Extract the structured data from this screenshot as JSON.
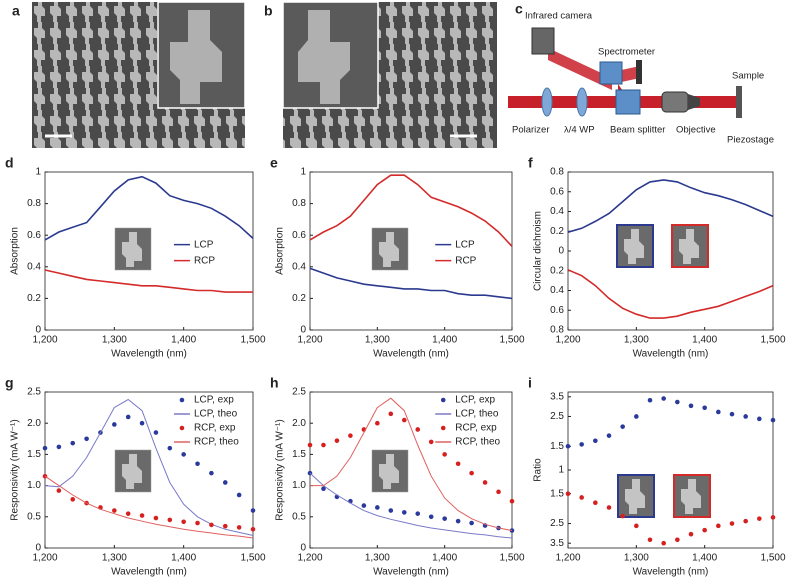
{
  "panels": {
    "a": {
      "label": "a"
    },
    "b": {
      "label": "b"
    },
    "c": {
      "label": "c",
      "labels": [
        "Infrared camera",
        "Spectrometer",
        "Sample",
        "Polarizer",
        "λ/4 WP",
        "Beam splitter",
        "Objective",
        "Piezostage"
      ]
    }
  },
  "chart_data": [
    {
      "type": "line",
      "label": "d",
      "ylabel": "Absorption",
      "xlabel": "Wavelength (nm)",
      "legend": "center-right",
      "x": [
        1200,
        1220,
        1240,
        1260,
        1280,
        1300,
        1320,
        1340,
        1360,
        1380,
        1400,
        1420,
        1440,
        1460,
        1480,
        1500
      ],
      "xlim": [
        1200,
        1500
      ],
      "xticks": [
        {
          "value": 1200,
          "label": "1,200"
        },
        {
          "value": 1300,
          "label": "1,300"
        },
        {
          "value": 1400,
          "label": "1,400"
        },
        {
          "value": 1500,
          "label": "1,500"
        }
      ],
      "ylim": [
        0,
        1
      ],
      "yticks": [
        0,
        0.2,
        0.4,
        0.6,
        0.8,
        1
      ],
      "series": [
        {
          "name": "LCP",
          "color": "#2b3a8f",
          "mode": "lines",
          "values": [
            0.57,
            0.62,
            0.65,
            0.68,
            0.78,
            0.88,
            0.95,
            0.97,
            0.93,
            0.85,
            0.82,
            0.8,
            0.77,
            0.72,
            0.66,
            0.58
          ]
        },
        {
          "name": "RCP",
          "color": "#d42a2a",
          "mode": "lines",
          "values": [
            0.38,
            0.36,
            0.34,
            0.32,
            0.31,
            0.3,
            0.29,
            0.28,
            0.28,
            0.27,
            0.26,
            0.25,
            0.25,
            0.24,
            0.24,
            0.24
          ]
        }
      ]
    },
    {
      "type": "line",
      "label": "e",
      "ylabel": "Absorption",
      "xlabel": "Wavelength (nm)",
      "legend": "center-right",
      "x": [
        1200,
        1220,
        1240,
        1260,
        1280,
        1300,
        1320,
        1340,
        1360,
        1380,
        1400,
        1420,
        1440,
        1460,
        1480,
        1500
      ],
      "xlim": [
        1200,
        1500
      ],
      "xticks": [
        {
          "value": 1200,
          "label": "1,200"
        },
        {
          "value": 1300,
          "label": "1,300"
        },
        {
          "value": 1400,
          "label": "1,400"
        },
        {
          "value": 1500,
          "label": "1,500"
        }
      ],
      "ylim": [
        0,
        1
      ],
      "yticks": [
        0,
        0.2,
        0.4,
        0.6,
        0.8,
        1
      ],
      "series": [
        {
          "name": "LCP",
          "color": "#2b3a8f",
          "mode": "lines",
          "values": [
            0.39,
            0.36,
            0.33,
            0.31,
            0.29,
            0.28,
            0.27,
            0.26,
            0.26,
            0.25,
            0.25,
            0.23,
            0.22,
            0.22,
            0.21,
            0.2
          ]
        },
        {
          "name": "RCP",
          "color": "#d42a2a",
          "mode": "lines",
          "values": [
            0.57,
            0.62,
            0.66,
            0.72,
            0.82,
            0.92,
            0.98,
            0.98,
            0.92,
            0.84,
            0.81,
            0.78,
            0.74,
            0.69,
            0.62,
            0.53
          ]
        }
      ]
    },
    {
      "type": "line",
      "label": "f",
      "ylabel": "Circular dichroism",
      "xlabel": "Wavelength (nm)",
      "x": [
        1200,
        1220,
        1240,
        1260,
        1280,
        1300,
        1320,
        1340,
        1360,
        1380,
        1400,
        1420,
        1440,
        1460,
        1480,
        1500
      ],
      "xlim": [
        1200,
        1500
      ],
      "xticks": [
        {
          "value": 1200,
          "label": "1,200"
        },
        {
          "value": 1300,
          "label": "1,300"
        },
        {
          "value": 1400,
          "label": "1,400"
        },
        {
          "value": 1500,
          "label": "1,500"
        }
      ],
      "ylim": [
        -0.8,
        0.8
      ],
      "yticks": [
        {
          "value": -0.8,
          "label": "0.8"
        },
        {
          "value": -0.6,
          "label": "0.6"
        },
        {
          "value": -0.4,
          "label": "0.4"
        },
        {
          "value": -0.2,
          "label": "0.2"
        },
        0,
        0.2,
        0.4,
        0.6,
        0.8
      ],
      "series": [
        {
          "name": "LCP",
          "color": "#2b3a8f",
          "mode": "lines",
          "values": [
            0.19,
            0.23,
            0.3,
            0.38,
            0.5,
            0.62,
            0.7,
            0.72,
            0.7,
            0.64,
            0.59,
            0.56,
            0.52,
            0.47,
            0.41,
            0.35
          ]
        },
        {
          "name": "RCP",
          "color": "#d42a2a",
          "mode": "lines",
          "values": [
            -0.19,
            -0.25,
            -0.35,
            -0.48,
            -0.58,
            -0.64,
            -0.68,
            -0.68,
            -0.66,
            -0.62,
            -0.59,
            -0.56,
            -0.51,
            -0.46,
            -0.41,
            -0.35
          ]
        }
      ]
    },
    {
      "type": "line",
      "label": "g",
      "ylabel": "Responsivity (mA W⁻¹)",
      "xlabel": "Wavelength (nm)",
      "legend": "upper-right",
      "x": [
        1200,
        1220,
        1240,
        1260,
        1280,
        1300,
        1320,
        1340,
        1360,
        1380,
        1400,
        1420,
        1440,
        1460,
        1480,
        1500
      ],
      "xlim": [
        1200,
        1500
      ],
      "xticks": [
        {
          "value": 1200,
          "label": "1,200"
        },
        {
          "value": 1300,
          "label": "1,300"
        },
        {
          "value": 1400,
          "label": "1,400"
        },
        {
          "value": 1500,
          "label": "1,500"
        }
      ],
      "ylim": [
        0,
        2.5
      ],
      "yticks": [
        0,
        0.5,
        {
          "value": 1,
          "label": "1.0"
        },
        1.5,
        {
          "value": 2,
          "label": "2.0"
        },
        2.5
      ],
      "series": [
        {
          "name": "LCP, exp",
          "color": "#2a3a9a",
          "mode": "markers",
          "values": [
            1.6,
            1.62,
            1.68,
            1.75,
            1.85,
            1.98,
            2.1,
            2.0,
            1.85,
            1.6,
            1.5,
            1.35,
            1.2,
            1.05,
            0.85,
            0.6
          ]
        },
        {
          "name": "LCP, theo",
          "color": "#7a7ac8",
          "mode": "lines",
          "values": [
            1.0,
            0.98,
            1.15,
            1.45,
            1.85,
            2.25,
            2.38,
            2.2,
            1.6,
            1.05,
            0.7,
            0.5,
            0.38,
            0.3,
            0.25,
            0.2
          ]
        },
        {
          "name": "RCP, exp",
          "color": "#d62020",
          "mode": "markers",
          "values": [
            1.15,
            0.92,
            0.78,
            0.72,
            0.65,
            0.6,
            0.55,
            0.52,
            0.48,
            0.45,
            0.42,
            0.4,
            0.37,
            0.35,
            0.33,
            0.3
          ]
        },
        {
          "name": "RCP, theo",
          "color": "#e06060",
          "mode": "lines",
          "values": [
            1.15,
            1.0,
            0.85,
            0.72,
            0.62,
            0.55,
            0.48,
            0.43,
            0.38,
            0.34,
            0.3,
            0.27,
            0.24,
            0.21,
            0.19,
            0.16
          ]
        }
      ]
    },
    {
      "type": "line",
      "label": "h",
      "ylabel": "Responsivity (mA W⁻¹)",
      "xlabel": "Wavelength (nm)",
      "legend": "upper-right",
      "x": [
        1200,
        1220,
        1240,
        1260,
        1280,
        1300,
        1320,
        1340,
        1360,
        1380,
        1400,
        1420,
        1440,
        1460,
        1480,
        1500
      ],
      "xlim": [
        1200,
        1500
      ],
      "xticks": [
        {
          "value": 1200,
          "label": "1,200"
        },
        {
          "value": 1300,
          "label": "1,300"
        },
        {
          "value": 1400,
          "label": "1,400"
        },
        {
          "value": 1500,
          "label": "1,500"
        }
      ],
      "ylim": [
        0,
        2.5
      ],
      "yticks": [
        0,
        0.5,
        {
          "value": 1,
          "label": "1.0"
        },
        1.5,
        {
          "value": 2,
          "label": "2.0"
        },
        2.5
      ],
      "series": [
        {
          "name": "LCP, exp",
          "color": "#2a3a9a",
          "mode": "markers",
          "values": [
            1.2,
            0.95,
            0.82,
            0.75,
            0.68,
            0.65,
            0.6,
            0.57,
            0.55,
            0.5,
            0.47,
            0.43,
            0.4,
            0.36,
            0.32,
            0.28
          ]
        },
        {
          "name": "LCP, theo",
          "color": "#7a7ac8",
          "mode": "lines",
          "values": [
            1.2,
            1.0,
            0.85,
            0.72,
            0.6,
            0.52,
            0.46,
            0.41,
            0.36,
            0.32,
            0.29,
            0.26,
            0.23,
            0.21,
            0.18,
            0.16
          ]
        },
        {
          "name": "RCP, exp",
          "color": "#d62020",
          "mode": "markers",
          "values": [
            1.65,
            1.65,
            1.72,
            1.8,
            1.9,
            2.0,
            2.15,
            2.05,
            1.9,
            1.7,
            1.5,
            1.35,
            1.2,
            1.05,
            0.9,
            0.75
          ]
        },
        {
          "name": "RCP, theo",
          "color": "#e06060",
          "mode": "lines",
          "values": [
            1.0,
            1.0,
            1.15,
            1.45,
            1.85,
            2.25,
            2.4,
            2.2,
            1.65,
            1.15,
            0.8,
            0.6,
            0.47,
            0.38,
            0.32,
            0.28
          ]
        }
      ]
    },
    {
      "type": "scatter",
      "label": "i",
      "ylabel": "Ratio",
      "xlabel": "Wavelength (nm)",
      "yscale": "mirrored-log",
      "x": [
        1200,
        1220,
        1240,
        1260,
        1280,
        1300,
        1320,
        1340,
        1360,
        1380,
        1400,
        1420,
        1440,
        1460,
        1480,
        1500
      ],
      "xlim": [
        1200,
        1500
      ],
      "xticks": [
        {
          "value": 1200,
          "label": "1,200"
        },
        {
          "value": 1300,
          "label": "1,300"
        },
        {
          "value": 1400,
          "label": "1,400"
        },
        {
          "value": 1500,
          "label": "1,500"
        }
      ],
      "ylim": [
        -3.8,
        3.8
      ],
      "yticks": [
        3.5,
        2.5,
        1.5,
        1,
        {
          "value": -1.5,
          "label": "1.5"
        },
        {
          "value": -2.5,
          "label": "2.5"
        },
        {
          "value": -3.5,
          "label": "3.5"
        }
      ],
      "series": [
        {
          "color": "#2a3a9a",
          "values": [
            1.5,
            1.55,
            1.65,
            1.8,
            2.1,
            2.5,
            3.3,
            3.4,
            3.2,
            3.0,
            2.9,
            2.7,
            2.6,
            2.5,
            2.4,
            2.35
          ]
        },
        {
          "color": "#d62020",
          "values": [
            -1.5,
            -1.6,
            -1.75,
            -1.9,
            -2.2,
            -2.6,
            -3.3,
            -3.5,
            -3.3,
            -3.0,
            -2.8,
            -2.6,
            -2.5,
            -2.4,
            -2.3,
            -2.25
          ]
        }
      ]
    }
  ]
}
